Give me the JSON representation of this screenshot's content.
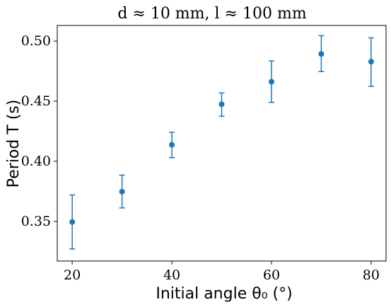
{
  "chart_data": {
    "type": "scatter",
    "title": "d ≈ 10 mm, l ≈ 100 mm",
    "xlabel": "Initial angle θ₀ (°)",
    "ylabel": "Period T (s)",
    "x": [
      20,
      30,
      40,
      50,
      60,
      70,
      80
    ],
    "y": [
      0.3495,
      0.3747,
      0.4137,
      0.4475,
      0.4662,
      0.4893,
      0.4829
    ],
    "yerr_low": [
      0.0225,
      0.0135,
      0.0107,
      0.0101,
      0.0172,
      0.0147,
      0.0206
    ],
    "yerr_high": [
      0.0225,
      0.0138,
      0.0104,
      0.0094,
      0.0173,
      0.0152,
      0.0198
    ],
    "xticks": [
      "20",
      "40",
      "60",
      "80"
    ],
    "yticks": [
      "0.35",
      "0.40",
      "0.45",
      "0.50"
    ],
    "xlim": [
      17,
      83
    ],
    "ylim": [
      0.317,
      0.513
    ],
    "grid": false,
    "color": "#1f77b4"
  }
}
